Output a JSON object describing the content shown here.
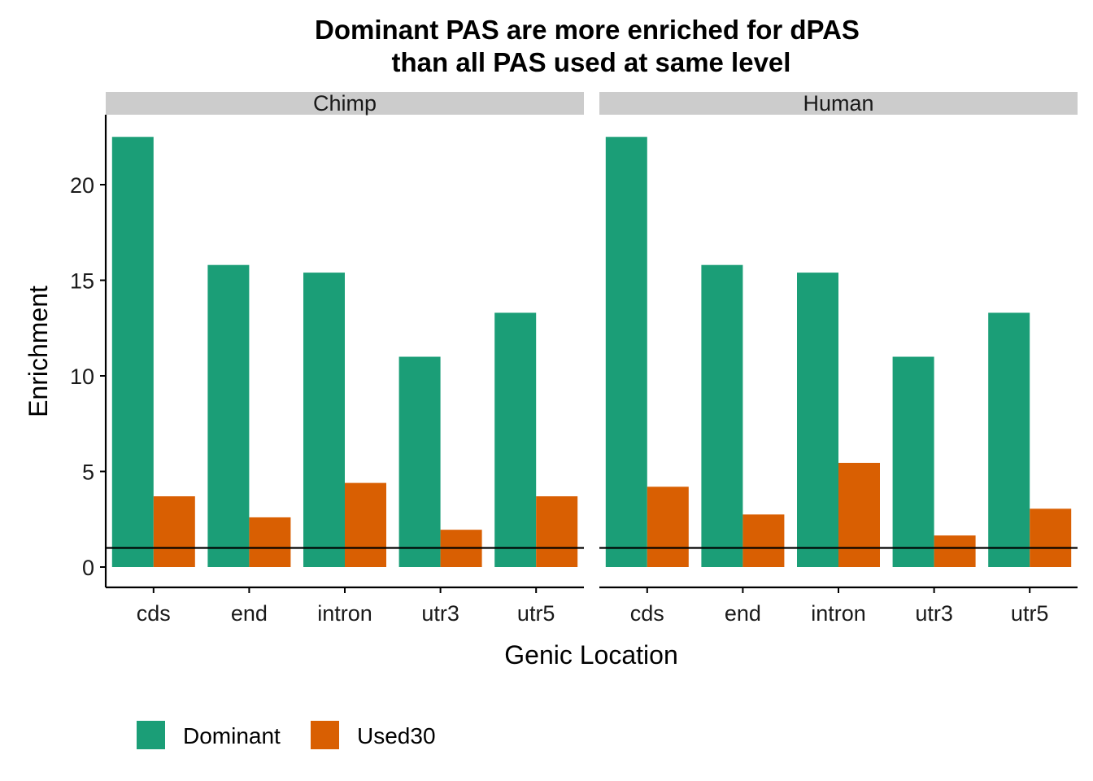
{
  "chart_data": {
    "type": "bar",
    "title_line1": "Dominant PAS are more enriched for dPAS",
    "title_line2": "than all PAS used at same level",
    "xlabel": "Genic Location",
    "ylabel": "Enrichment",
    "ylim": [
      0,
      23.5
    ],
    "yticks": [
      0,
      5,
      10,
      15,
      20
    ],
    "reference_line": 1,
    "categories": [
      "cds",
      "end",
      "intron",
      "utr3",
      "utr5"
    ],
    "colors": {
      "Dominant": "#1b9e77",
      "Used30": "#d95f02",
      "strip": "#cccccc"
    },
    "legend_position": "bottom-left",
    "facets": [
      {
        "name": "Chimp",
        "series": [
          {
            "name": "Dominant",
            "values": [
              22.5,
              15.8,
              15.4,
              11.0,
              13.3
            ]
          },
          {
            "name": "Used30",
            "values": [
              3.7,
              2.6,
              4.4,
              1.95,
              3.7
            ]
          }
        ]
      },
      {
        "name": "Human",
        "series": [
          {
            "name": "Dominant",
            "values": [
              22.5,
              15.8,
              15.4,
              11.0,
              13.3
            ]
          },
          {
            "name": "Used30",
            "values": [
              4.2,
              2.75,
              5.45,
              1.65,
              3.05
            ]
          }
        ]
      }
    ]
  }
}
